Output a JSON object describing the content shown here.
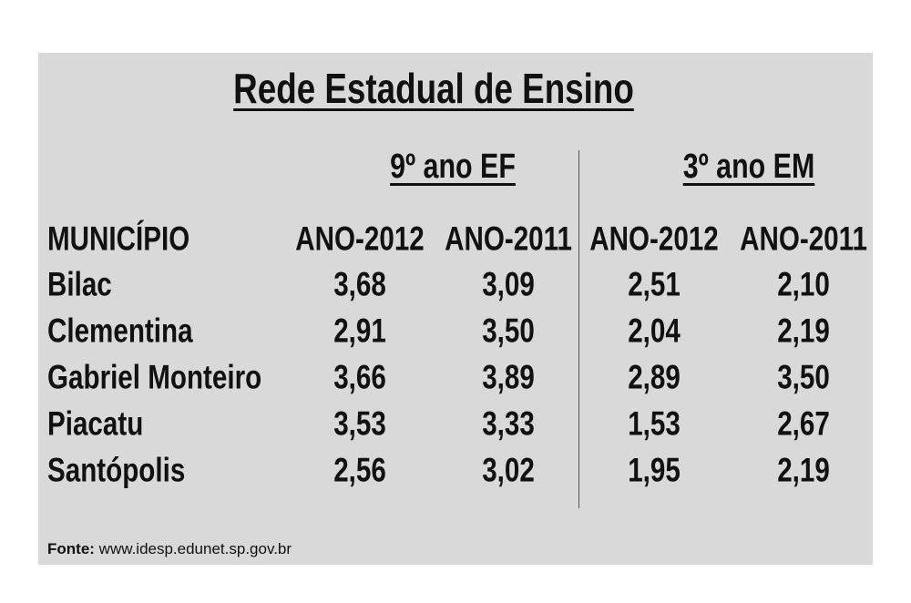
{
  "title": "Rede Estadual de Ensino",
  "groups": [
    "9º ano EF",
    "3º ano EM"
  ],
  "table": {
    "header": [
      "MUNICÍPIO",
      "ANO-2012",
      "ANO-2011",
      "ANO-2012",
      "ANO-2011"
    ],
    "rows": [
      [
        "Bilac",
        "3,68",
        "3,09",
        "2,51",
        "2,10"
      ],
      [
        "Clementina",
        "2,91",
        "3,50",
        "2,04",
        "2,19"
      ],
      [
        "Gabriel Monteiro",
        "3,66",
        "3,89",
        "2,89",
        "3,50"
      ],
      [
        "Piacatu",
        "3,53",
        "3,33",
        "1,53",
        "2,67"
      ],
      [
        "Santópolis",
        "2,56",
        "3,02",
        "1,95",
        "2,19"
      ]
    ]
  },
  "source": {
    "label": "Fonte:",
    "text": "www.idesp.edunet.sp.gov.br"
  }
}
